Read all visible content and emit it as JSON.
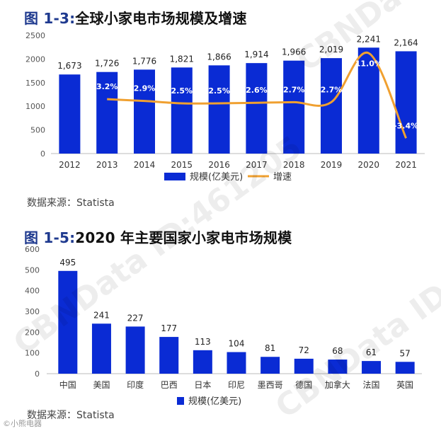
{
  "chart_data": [
    {
      "type": "bar+line",
      "title_prefix": "图 1-3:",
      "title_main": "全球小家电市场规模及增速",
      "categories": [
        "2012",
        "2013",
        "2014",
        "2015",
        "2016",
        "2017",
        "2018",
        "2019",
        "2020",
        "2021"
      ],
      "series": [
        {
          "name": "规模(亿美元)",
          "type": "bar",
          "values": [
            1673,
            1726,
            1776,
            1821,
            1866,
            1914,
            1966,
            2019,
            2241,
            2164
          ]
        },
        {
          "name": "增速",
          "type": "line",
          "values": [
            null,
            3.2,
            2.9,
            2.5,
            2.5,
            2.6,
            2.7,
            2.7,
            11.0,
            -3.4
          ]
        }
      ],
      "value_labels": [
        "1,673",
        "1,726",
        "1,776",
        "1,821",
        "1,866",
        "1,914",
        "1,966",
        "2,019",
        "2,241",
        "2,164"
      ],
      "growth_labels": [
        "",
        "3.2%",
        "2.9%",
        "2.5%",
        "2.5%",
        "2.6%",
        "2.7%",
        "2.7%",
        "11.0%",
        "-3.4%"
      ],
      "yticks": [
        "0",
        "500",
        "1000",
        "1500",
        "2000",
        "2500"
      ],
      "ylim": [
        0,
        2500
      ],
      "growth_range": [
        -6,
        14
      ],
      "legend_position": "bottom",
      "source": "数据来源：Statista"
    },
    {
      "type": "bar",
      "title_prefix": "图 1-5:",
      "title_main": "2020 年主要国家小家电市场规模",
      "categories": [
        "中国",
        "美国",
        "印度",
        "巴西",
        "日本",
        "印尼",
        "墨西哥",
        "德国",
        "加拿大",
        "法国",
        "英国"
      ],
      "series": [
        {
          "name": "规模(亿美元)",
          "type": "bar",
          "values": [
            495,
            241,
            227,
            177,
            113,
            104,
            81,
            72,
            68,
            61,
            57
          ]
        }
      ],
      "yticks": [
        "0",
        "100",
        "200",
        "300",
        "400",
        "500",
        "600"
      ],
      "ylim": [
        0,
        600
      ],
      "legend_position": "bottom",
      "source": "数据来源：Statista"
    }
  ],
  "colors": {
    "bar": "#0a2bd4",
    "line": "#f0a030",
    "axis": "#bbbbbb"
  },
  "watermark": "CBNData ID:461205",
  "footer": "©小熊电器"
}
